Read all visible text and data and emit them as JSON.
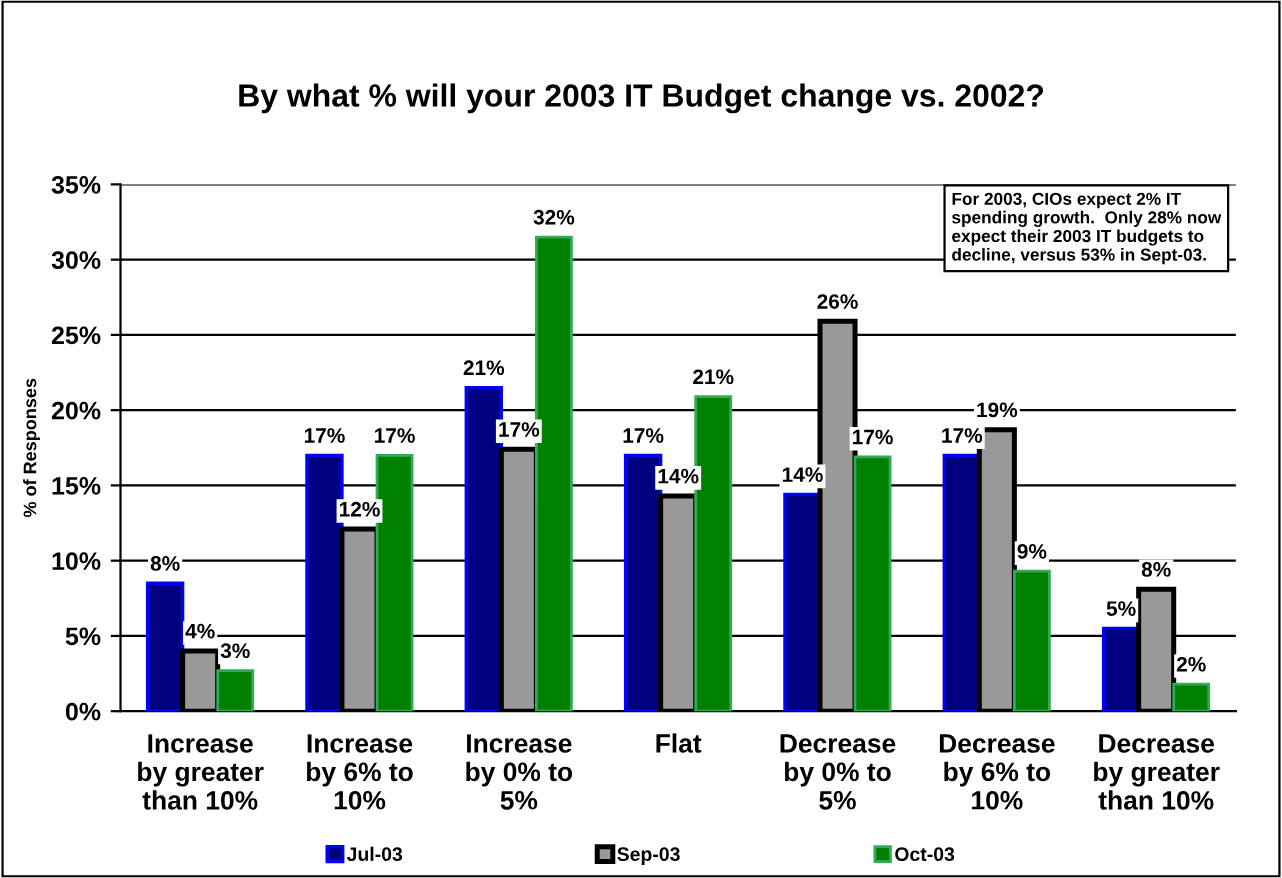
{
  "chart_data": {
    "type": "bar",
    "title": "By what % will your 2003 IT Budget change vs. 2002?",
    "ylabel": "% of Responses",
    "categories": [
      "Increase\nby greater\nthan 10%",
      "Increase\nby 6% to\n10%",
      "Increase\nby 0% to\n5%",
      "Flat",
      "Decrease\nby 0% to\n5%",
      "Decrease\nby 6% to\n10%",
      "Decrease\nby greater\nthan 10%"
    ],
    "series": [
      {
        "name": "Jul-03",
        "color": "#000080",
        "values": [
          8.5,
          17.0,
          21.5,
          17.0,
          14.4,
          17.0,
          5.5
        ],
        "value_labels": [
          "8%",
          "17%",
          "21%",
          "17%",
          "14%",
          "17%",
          "5%"
        ]
      },
      {
        "name": "Sep-03",
        "color": "#999999",
        "values": [
          4.0,
          12.1,
          17.4,
          14.3,
          25.9,
          18.7,
          8.1
        ],
        "value_labels": [
          "4%",
          "12%",
          "17%",
          "14%",
          "26%",
          "19%",
          "8%"
        ]
      },
      {
        "name": "Oct-03",
        "color": "#008000",
        "values": [
          2.7,
          17.0,
          31.5,
          20.9,
          16.9,
          9.3,
          1.8
        ],
        "value_labels": [
          "3%",
          "17%",
          "32%",
          "21%",
          "17%",
          "9%",
          "2%"
        ]
      }
    ],
    "ylim": [
      0,
      35
    ],
    "yticks": [
      {
        "value": 0,
        "label": "0%"
      },
      {
        "value": 5,
        "label": "5%"
      },
      {
        "value": 10,
        "label": "10%"
      },
      {
        "value": 15,
        "label": "15%"
      },
      {
        "value": 20,
        "label": "20%"
      },
      {
        "value": 25,
        "label": "25%"
      },
      {
        "value": 30,
        "label": "30%"
      },
      {
        "value": 35,
        "label": "35%"
      }
    ],
    "grid": "y",
    "legend": "bottom",
    "annotations": [
      "For 2003, CIOs expect 2% IT spending growth.  Only 28% now expect their 2003 IT budgets to decline, versus 53% in Sept-03."
    ]
  }
}
